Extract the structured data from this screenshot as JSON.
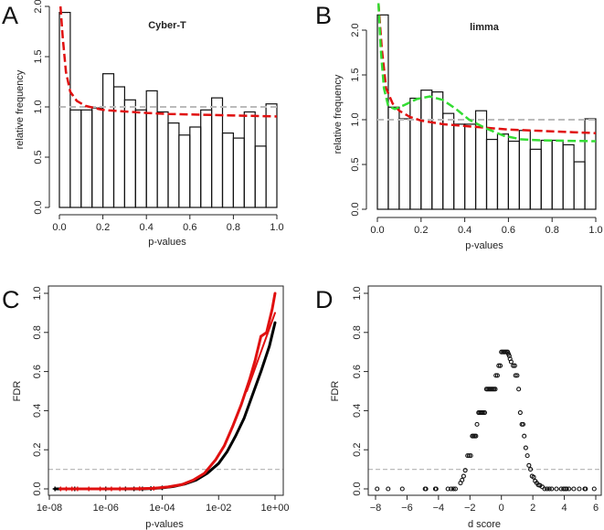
{
  "chart_data": [
    {
      "panel": "A",
      "type": "bar",
      "title": "Cyber-T",
      "xlabel": "p-values",
      "ylabel": "relative frequency",
      "xlim": [
        0,
        1
      ],
      "ylim": [
        0,
        2
      ],
      "xticks": [
        "0.0",
        "0.2",
        "0.4",
        "0.6",
        "0.8",
        "1.0"
      ],
      "yticks": [
        "0.0",
        "0.5",
        "1.0",
        "1.5",
        "2.0"
      ],
      "bin_width": 0.05,
      "values": [
        1.94,
        0.97,
        0.97,
        0.99,
        1.33,
        1.2,
        1.07,
        0.97,
        1.16,
        0.95,
        0.84,
        0.72,
        0.8,
        0.97,
        1.09,
        0.74,
        0.69,
        0.95,
        0.61,
        1.03
      ],
      "reference_line": 1.0,
      "fits": [
        {
          "name": "fit-red",
          "color": "#e01010",
          "points": [
            [
              0.005,
              2.0
            ],
            [
              0.015,
              1.7
            ],
            [
              0.03,
              1.35
            ],
            [
              0.05,
              1.15
            ],
            [
              0.08,
              1.06
            ],
            [
              0.12,
              1.01
            ],
            [
              0.2,
              0.97
            ],
            [
              0.3,
              0.955
            ],
            [
              0.4,
              0.94
            ],
            [
              0.5,
              0.93
            ],
            [
              0.6,
              0.925
            ],
            [
              0.7,
              0.92
            ],
            [
              0.8,
              0.915
            ],
            [
              0.9,
              0.91
            ],
            [
              1.0,
              0.905
            ]
          ]
        }
      ]
    },
    {
      "panel": "B",
      "type": "bar",
      "title": "limma",
      "xlabel": "p-values",
      "ylabel": "relative frequency",
      "xlim": [
        0,
        1
      ],
      "ylim": [
        0,
        2.2
      ],
      "xticks": [
        "0.0",
        "0.2",
        "0.4",
        "0.6",
        "0.8",
        "1.0"
      ],
      "yticks": [
        "0.0",
        "0.5",
        "1.0",
        "1.5",
        "2.0"
      ],
      "bin_width": 0.05,
      "values": [
        2.17,
        1.14,
        1.01,
        1.24,
        1.33,
        1.31,
        1.07,
        0.95,
        0.95,
        1.1,
        0.78,
        0.84,
        0.76,
        0.88,
        0.67,
        0.77,
        0.77,
        0.72,
        0.53,
        1.01
      ],
      "reference_line": 1.0,
      "fits": [
        {
          "name": "fit-red",
          "color": "#e01010",
          "points": [
            [
              0.005,
              2.3
            ],
            [
              0.02,
              1.8
            ],
            [
              0.04,
              1.35
            ],
            [
              0.07,
              1.18
            ],
            [
              0.1,
              1.1
            ],
            [
              0.15,
              1.03
            ],
            [
              0.2,
              0.99
            ],
            [
              0.3,
              0.95
            ],
            [
              0.4,
              0.93
            ],
            [
              0.5,
              0.91
            ],
            [
              0.6,
              0.89
            ],
            [
              0.7,
              0.88
            ],
            [
              0.8,
              0.87
            ],
            [
              0.9,
              0.86
            ],
            [
              1.0,
              0.85
            ]
          ]
        },
        {
          "name": "fit-green",
          "color": "#33dd33",
          "points": [
            [
              0.005,
              2.3
            ],
            [
              0.015,
              1.8
            ],
            [
              0.03,
              1.35
            ],
            [
              0.05,
              1.15
            ],
            [
              0.08,
              1.12
            ],
            [
              0.12,
              1.16
            ],
            [
              0.18,
              1.23
            ],
            [
              0.24,
              1.26
            ],
            [
              0.3,
              1.22
            ],
            [
              0.36,
              1.12
            ],
            [
              0.42,
              1.0
            ],
            [
              0.5,
              0.9
            ],
            [
              0.58,
              0.82
            ],
            [
              0.66,
              0.78
            ],
            [
              0.75,
              0.77
            ],
            [
              0.85,
              0.765
            ],
            [
              1.0,
              0.76
            ]
          ]
        }
      ]
    },
    {
      "panel": "C",
      "type": "scatter",
      "xlabel": "p-values",
      "ylabel": "FDR",
      "xscale": "log10",
      "xlim": [
        -8,
        0
      ],
      "ylim": [
        0,
        1
      ],
      "xticks": [
        "1e-08",
        "1e-06",
        "1e-04",
        "1e-02",
        "1e+00"
      ],
      "yticks": [
        "0.0",
        "0.2",
        "0.4",
        "0.6",
        "0.8",
        "1.0"
      ],
      "reference_line": 0.1,
      "series": [
        {
          "name": "black",
          "color": "#000000",
          "points": [
            [
              -7.8,
              0
            ],
            [
              -7.1,
              0
            ],
            [
              -6.0,
              0
            ],
            [
              -5.3,
              0
            ],
            [
              -5.0,
              0
            ],
            [
              -4.7,
              0
            ],
            [
              -4.4,
              0.002
            ],
            [
              -4.0,
              0.005
            ],
            [
              -3.6,
              0.012
            ],
            [
              -3.2,
              0.025
            ],
            [
              -2.8,
              0.045
            ],
            [
              -2.4,
              0.08
            ],
            [
              -2.0,
              0.13
            ],
            [
              -1.7,
              0.19
            ],
            [
              -1.4,
              0.27
            ],
            [
              -1.1,
              0.36
            ],
            [
              -0.8,
              0.48
            ],
            [
              -0.5,
              0.6
            ],
            [
              -0.2,
              0.73
            ],
            [
              0,
              0.85
            ]
          ]
        },
        {
          "name": "red",
          "color": "#e01010",
          "points": [
            [
              -7.6,
              0
            ],
            [
              -7.4,
              0
            ],
            [
              -7.2,
              0
            ],
            [
              -7.0,
              0
            ],
            [
              -6.6,
              0
            ],
            [
              -6.2,
              0
            ],
            [
              -5.8,
              0
            ],
            [
              -5.5,
              0
            ],
            [
              -4.8,
              0.001
            ],
            [
              -4.3,
              0.003
            ],
            [
              -3.8,
              0.01
            ],
            [
              -3.3,
              0.022
            ],
            [
              -2.9,
              0.045
            ],
            [
              -2.5,
              0.08
            ],
            [
              -2.1,
              0.15
            ],
            [
              -1.8,
              0.22
            ],
            [
              -1.5,
              0.32
            ],
            [
              -1.2,
              0.43
            ],
            [
              -0.9,
              0.56
            ],
            [
              -0.7,
              0.66
            ],
            [
              -0.5,
              0.78
            ],
            [
              -0.3,
              0.8
            ],
            [
              -0.1,
              0.92
            ],
            [
              0,
              1.0
            ]
          ]
        },
        {
          "name": "red-alt",
          "color": "#e01010",
          "points": [
            [
              -1.0,
              0.5
            ],
            [
              -0.6,
              0.66
            ],
            [
              -0.3,
              0.78
            ],
            [
              -0.1,
              0.86
            ],
            [
              0,
              0.9
            ]
          ]
        }
      ]
    },
    {
      "panel": "D",
      "type": "scatter",
      "xlabel": "d score",
      "ylabel": "FDR",
      "xlim": [
        -8,
        6
      ],
      "ylim": [
        0,
        1
      ],
      "xticks": [
        "−8",
        "−6",
        "−4",
        "−2",
        "0",
        "2",
        "4",
        "6"
      ],
      "yticks": [
        "0.0",
        "0.2",
        "0.4",
        "0.6",
        "0.8",
        "1.0"
      ],
      "reference_line": 0.1,
      "points": [
        [
          -7.9,
          0
        ],
        [
          -7.2,
          0
        ],
        [
          -6.3,
          0
        ],
        [
          -4.85,
          0
        ],
        [
          -4.8,
          0
        ],
        [
          -4.2,
          0
        ],
        [
          -4.15,
          0
        ],
        [
          -3.4,
          0
        ],
        [
          -3.2,
          0
        ],
        [
          -3.05,
          0
        ],
        [
          -2.92,
          0
        ],
        [
          -2.6,
          0.03
        ],
        [
          -2.5,
          0.045
        ],
        [
          -2.4,
          0.065
        ],
        [
          -2.3,
          0.095
        ],
        [
          -2.15,
          0.17
        ],
        [
          -2.05,
          0.17
        ],
        [
          -1.95,
          0.17
        ],
        [
          -1.85,
          0.27
        ],
        [
          -1.78,
          0.27
        ],
        [
          -1.7,
          0.27
        ],
        [
          -1.62,
          0.27
        ],
        [
          -1.55,
          0.33
        ],
        [
          -1.45,
          0.39
        ],
        [
          -1.38,
          0.39
        ],
        [
          -1.3,
          0.39
        ],
        [
          -1.22,
          0.39
        ],
        [
          -1.14,
          0.39
        ],
        [
          -1.06,
          0.39
        ],
        [
          -0.95,
          0.51
        ],
        [
          -0.87,
          0.51
        ],
        [
          -0.79,
          0.51
        ],
        [
          -0.71,
          0.51
        ],
        [
          -0.63,
          0.51
        ],
        [
          -0.55,
          0.51
        ],
        [
          -0.47,
          0.51
        ],
        [
          -0.39,
          0.51
        ],
        [
          -0.35,
          0.58
        ],
        [
          -0.25,
          0.58
        ],
        [
          -0.17,
          0.63
        ],
        [
          -0.07,
          0.63
        ],
        [
          0.0,
          0.7
        ],
        [
          0.08,
          0.7
        ],
        [
          0.16,
          0.7
        ],
        [
          0.24,
          0.7
        ],
        [
          0.32,
          0.7
        ],
        [
          0.4,
          0.7
        ],
        [
          0.45,
          0.69
        ],
        [
          0.5,
          0.68
        ],
        [
          0.55,
          0.665
        ],
        [
          0.62,
          0.65
        ],
        [
          0.75,
          0.63
        ],
        [
          0.85,
          0.63
        ],
        [
          0.9,
          0.58
        ],
        [
          1.0,
          0.58
        ],
        [
          1.1,
          0.51
        ],
        [
          1.2,
          0.39
        ],
        [
          1.3,
          0.33
        ],
        [
          1.38,
          0.33
        ],
        [
          1.45,
          0.27
        ],
        [
          1.55,
          0.21
        ],
        [
          1.65,
          0.17
        ],
        [
          1.75,
          0.12
        ],
        [
          1.85,
          0.1
        ],
        [
          1.95,
          0.065
        ],
        [
          2.05,
          0.06
        ],
        [
          2.15,
          0.04
        ],
        [
          2.25,
          0.03
        ],
        [
          2.35,
          0.02
        ],
        [
          2.45,
          0.018
        ],
        [
          2.6,
          0.01
        ],
        [
          2.75,
          0
        ],
        [
          2.9,
          0
        ],
        [
          3.05,
          0
        ],
        [
          3.2,
          0
        ],
        [
          3.5,
          0
        ],
        [
          3.8,
          0
        ],
        [
          3.95,
          0
        ],
        [
          4.05,
          0
        ],
        [
          4.15,
          0
        ],
        [
          4.3,
          0
        ],
        [
          4.6,
          0
        ],
        [
          4.95,
          0
        ],
        [
          5.3,
          0
        ],
        [
          5.35,
          0
        ],
        [
          5.9,
          0
        ]
      ]
    }
  ]
}
